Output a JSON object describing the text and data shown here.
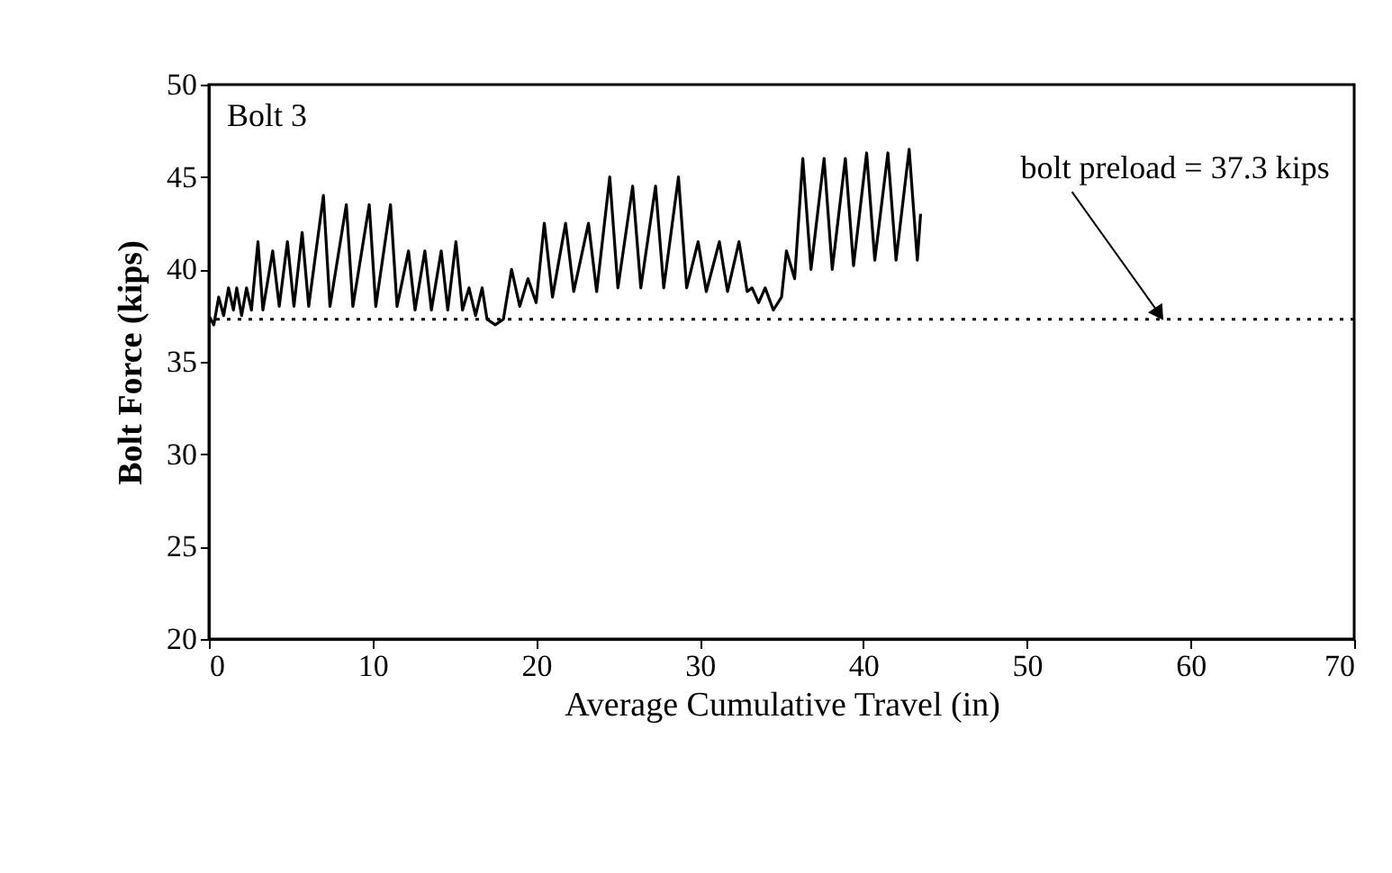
{
  "chart_data": {
    "type": "line",
    "xlabel": "Average Cumulative Travel (in)",
    "ylabel": "Bolt Force (kips)",
    "xlim": [
      0,
      70
    ],
    "ylim": [
      20,
      50
    ],
    "xticks": [
      0,
      10,
      20,
      30,
      40,
      50,
      60,
      70
    ],
    "yticks": [
      20,
      25,
      30,
      35,
      40,
      45,
      50
    ],
    "line_style": "solid",
    "annotations": [
      "Bolt 3",
      {
        "text": "bolt preload = 37.3 kips",
        "x": 58,
        "y": 37.3
      }
    ],
    "ref_lines": [
      {
        "axis": "y",
        "value": 37.3,
        "line_style": "dotted",
        "color": "#000000"
      }
    ],
    "series": [
      {
        "color": "#000000",
        "x": [
          0,
          0.3,
          0.6,
          0.9,
          1.2,
          1.5,
          1.7,
          2.0,
          2.3,
          2.6,
          3.0,
          3.3,
          3.9,
          4.3,
          4.8,
          5.2,
          5.7,
          6.1,
          7.0,
          7.4,
          8.4,
          8.8,
          9.8,
          10.2,
          11.1,
          11.5,
          12.2,
          12.6,
          13.2,
          13.6,
          14.2,
          14.6,
          15.1,
          15.5,
          15.9,
          16.3,
          16.7,
          17.0,
          17.5,
          18.0,
          18.5,
          19,
          19.5,
          20,
          20.5,
          21,
          21.8,
          22.3,
          23.2,
          23.7,
          24.5,
          25,
          25.9,
          26.4,
          27.3,
          27.8,
          28.7,
          29.2,
          29.9,
          30.4,
          31.2,
          31.7,
          32.4,
          32.9,
          33.2,
          33.6,
          34.0,
          34.5,
          35,
          35.3,
          35.8,
          36.3,
          36.8,
          37.6,
          38.1,
          38.9,
          39.4,
          40.2,
          40.7,
          41.5,
          42,
          42.8,
          43.3,
          43.5
        ],
        "values": [
          37.5,
          37,
          38.5,
          37.5,
          39,
          37.8,
          39,
          37.5,
          39,
          37.8,
          41.5,
          37.8,
          41,
          38,
          41.5,
          38,
          42,
          38,
          44,
          38,
          43.5,
          38,
          43.5,
          38,
          43.5,
          38,
          41,
          37.8,
          41,
          37.8,
          41,
          37.8,
          41.5,
          37.8,
          39,
          37.5,
          39,
          37.3,
          37,
          37.3,
          40,
          38,
          39.5,
          38.2,
          42.5,
          38.5,
          42.5,
          38.8,
          42.5,
          38.8,
          45,
          39,
          44.5,
          39,
          44.5,
          39,
          45,
          39,
          41.5,
          38.8,
          41.5,
          38.8,
          41.5,
          38.8,
          39,
          38.2,
          39,
          37.8,
          38.5,
          41,
          39.5,
          46,
          40,
          46,
          40,
          46,
          40.2,
          46.3,
          40.5,
          46.3,
          40.5,
          46.5,
          40.5,
          43
        ]
      }
    ]
  }
}
